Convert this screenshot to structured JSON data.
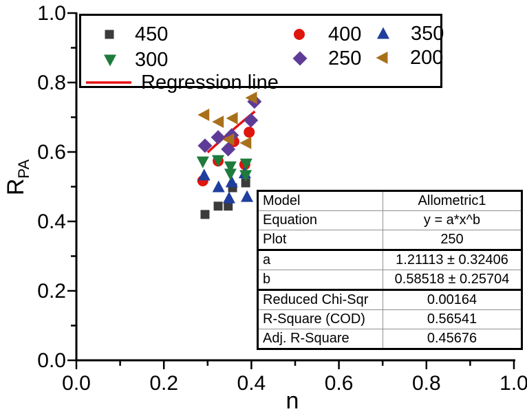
{
  "figure_title": "Scatter plot of R_PA versus n with allometric regression fit",
  "chart_data": {
    "type": "scatter",
    "xlabel": "n",
    "ylabel_base": "R",
    "ylabel_sub": "PA",
    "xlim": [
      0.0,
      1.0
    ],
    "ylim": [
      0.0,
      1.0
    ],
    "grid": false,
    "legend_position": "top-left-box",
    "x_major_ticks": [
      {
        "v": 0.0,
        "label": "0.0"
      },
      {
        "v": 0.2,
        "label": "0.2"
      },
      {
        "v": 0.4,
        "label": "0.4"
      },
      {
        "v": 0.6,
        "label": "0.6"
      },
      {
        "v": 0.8,
        "label": "0.8"
      },
      {
        "v": 1.0,
        "label": "1.0"
      }
    ],
    "y_major_ticks": [
      {
        "v": 0.0,
        "label": "0.0"
      },
      {
        "v": 0.2,
        "label": "0.2"
      },
      {
        "v": 0.4,
        "label": "0.4"
      },
      {
        "v": 0.6,
        "label": "0.6"
      },
      {
        "v": 0.8,
        "label": "0.8"
      },
      {
        "v": 1.0,
        "label": "1.0"
      }
    ],
    "minor_ticks": [
      0.1,
      0.3,
      0.5,
      0.7,
      0.9
    ],
    "series": [
      {
        "name": "450",
        "marker": "square",
        "color": "#3b3b3b",
        "points": [
          [
            0.294,
            0.42
          ],
          [
            0.324,
            0.444
          ],
          [
            0.347,
            0.444
          ],
          [
            0.357,
            0.497
          ],
          [
            0.387,
            0.511
          ]
        ]
      },
      {
        "name": "400",
        "marker": "circle",
        "color": "#e0150e",
        "points": [
          [
            0.289,
            0.517
          ],
          [
            0.324,
            0.574
          ],
          [
            0.36,
            0.63
          ],
          [
            0.385,
            0.564
          ],
          [
            0.395,
            0.657
          ]
        ]
      },
      {
        "name": "350",
        "marker": "triangle-up",
        "color": "#1f3e9e",
        "points": [
          [
            0.292,
            0.533
          ],
          [
            0.325,
            0.499
          ],
          [
            0.349,
            0.467
          ],
          [
            0.355,
            0.513
          ],
          [
            0.385,
            0.539
          ],
          [
            0.39,
            0.471
          ]
        ]
      },
      {
        "name": "300",
        "marker": "triangle-down",
        "color": "#1e7b3c",
        "points": [
          [
            0.289,
            0.572
          ],
          [
            0.324,
            0.576
          ],
          [
            0.352,
            0.558
          ],
          [
            0.352,
            0.537
          ],
          [
            0.387,
            0.533
          ],
          [
            0.388,
            0.566
          ]
        ]
      },
      {
        "name": "250",
        "marker": "diamond",
        "color": "#5f3b98",
        "points": [
          [
            0.294,
            0.618
          ],
          [
            0.324,
            0.642
          ],
          [
            0.347,
            0.608
          ],
          [
            0.355,
            0.648
          ],
          [
            0.399,
            0.691
          ],
          [
            0.407,
            0.745
          ]
        ]
      },
      {
        "name": "200",
        "marker": "triangle-left",
        "color": "#a9701b",
        "points": [
          [
            0.292,
            0.707
          ],
          [
            0.325,
            0.687
          ],
          [
            0.349,
            0.636
          ],
          [
            0.357,
            0.697
          ],
          [
            0.388,
            0.626
          ],
          [
            0.401,
            0.756
          ]
        ]
      }
    ],
    "regression": {
      "label": "Regression line",
      "color": "#e51212",
      "model": "y = a*x^b",
      "a": 1.21113,
      "b": 0.58518,
      "x_from": 0.3,
      "x_to": 0.408
    }
  },
  "results_table": {
    "rows": [
      {
        "label": "Model",
        "value": "Allometric1"
      },
      {
        "label": "Equation",
        "value": "y = a*x^b"
      },
      {
        "label": "Plot",
        "value": "250"
      },
      {
        "label": "a",
        "value": "1.21113 ± 0.32406"
      },
      {
        "label": "b",
        "value": "0.58518 ± 0.25704"
      },
      {
        "label": "Reduced Chi-Sqr",
        "value": "0.00164"
      },
      {
        "label": "R-Square (COD)",
        "value": "0.56541"
      },
      {
        "label": "Adj. R-Square",
        "value": "0.45676"
      }
    ]
  }
}
